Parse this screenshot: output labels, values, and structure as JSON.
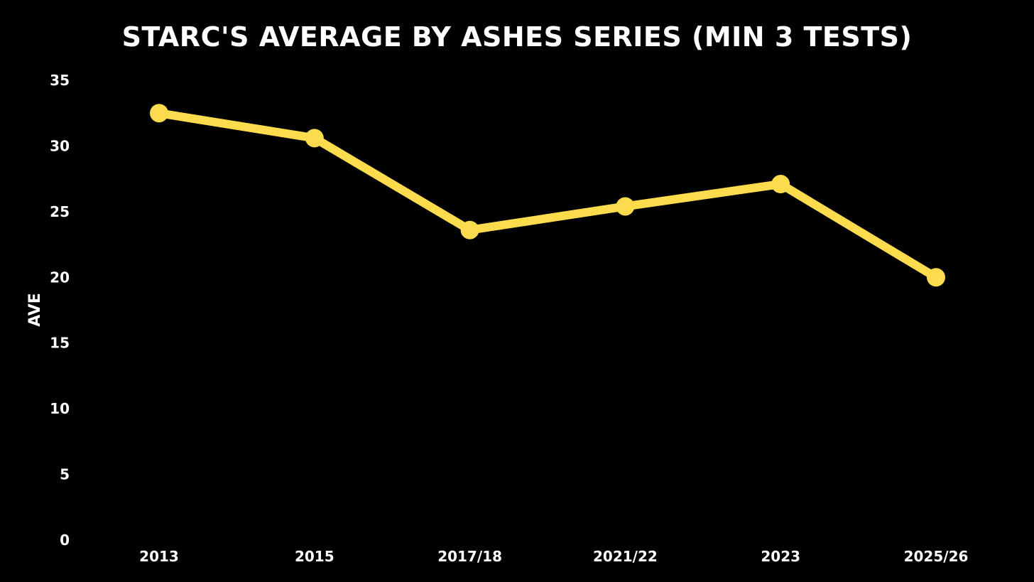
{
  "chart_data": {
    "type": "line",
    "title": "Starc's Average by Ashes Series (min 3 Tests)",
    "xlabel": "",
    "ylabel": "AVE",
    "categories": [
      "2013",
      "2015",
      "2017/18",
      "2021/22",
      "2023",
      "2025/26"
    ],
    "series": [
      {
        "values": [
          32.5,
          30.6,
          23.6,
          25.4,
          27.1,
          20.0
        ]
      }
    ],
    "ylim": [
      0,
      35
    ],
    "yticks": [
      "0",
      "5",
      "10",
      "15",
      "20",
      "25",
      "30",
      "35"
    ],
    "grid": false,
    "legend": "none",
    "colors": {
      "background": "#000000",
      "line": "#FCDC4D",
      "text": "#FFFFFF"
    }
  }
}
